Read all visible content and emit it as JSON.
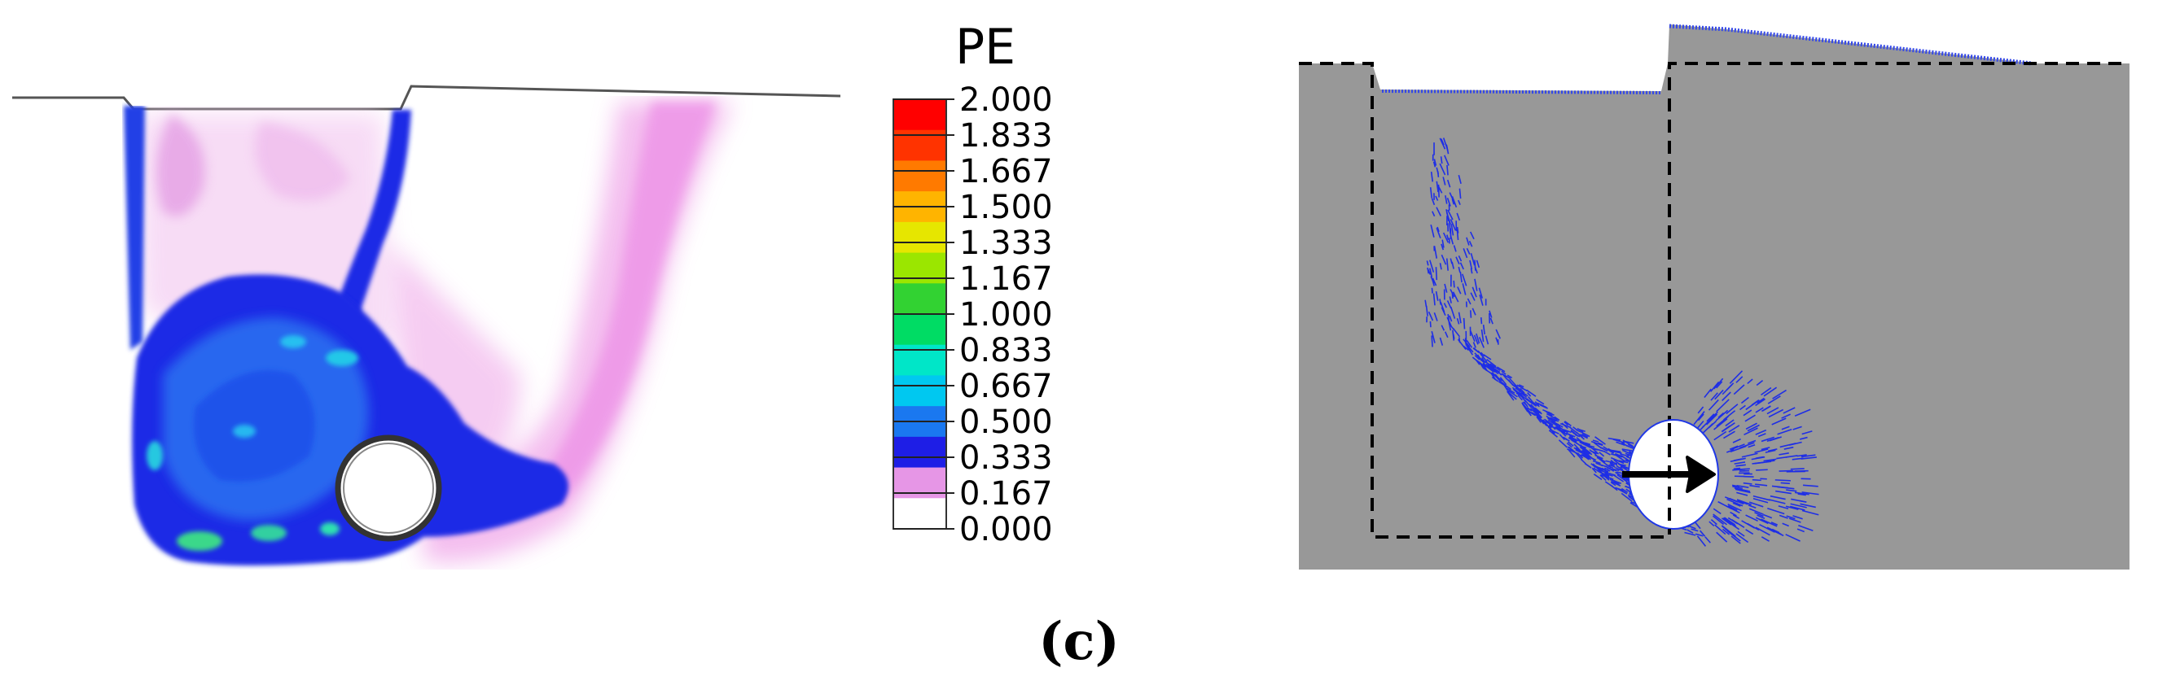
{
  "figure": {
    "caption": "(c)",
    "caption_letter": "c",
    "left_panel": {
      "legend_title": "PE",
      "legend_ticks": [
        "2.000",
        "1.833",
        "1.667",
        "1.500",
        "1.333",
        "1.167",
        "1.000",
        "0.833",
        "0.667",
        "0.500",
        "0.333",
        "0.167",
        "0.000"
      ],
      "legend_colors": [
        "#ff0000",
        "#ff3300",
        "#ff7a00",
        "#ffb400",
        "#e6e600",
        "#9be600",
        "#32d232",
        "#00dc64",
        "#00e6c8",
        "#00c8f0",
        "#1a78f0",
        "#1e1ee6",
        "#e696e6",
        "#ffffff"
      ]
    },
    "right_panel": {
      "background_color": "#989898",
      "vector_color": "#1e2ee6",
      "arrow_color": "#000000"
    }
  }
}
